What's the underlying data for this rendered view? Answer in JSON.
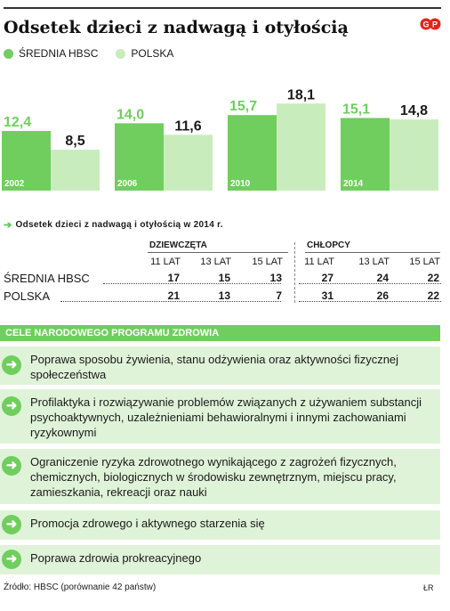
{
  "title": "Odsetek dzieci z nadwagą i otyłością",
  "legend": {
    "item1": "ŚREDNIA HBSC",
    "item2": "POLSKA"
  },
  "colors": {
    "hbsc": "#6fce5d",
    "polska": "#c9ecbc",
    "goal_bg": "#dff3d8",
    "banner": "#6fce5d"
  },
  "chart_data": {
    "type": "bar",
    "categories": [
      "2002",
      "2006",
      "2010",
      "2014"
    ],
    "series": [
      {
        "name": "ŚREDNIA HBSC",
        "values": [
          12.4,
          14.0,
          15.7,
          15.1
        ],
        "labels": [
          "12,4",
          "14,0",
          "15,7",
          "15,1"
        ]
      },
      {
        "name": "POLSKA",
        "values": [
          8.5,
          11.6,
          18.1,
          14.8
        ],
        "labels": [
          "8,5",
          "11,6",
          "18,1",
          "14,8"
        ]
      }
    ]
  },
  "table": {
    "title": "Odsetek dzieci z nadwagą i otyłością w 2014 r.",
    "group_girls": "DZIEWCZĘTA",
    "group_boys": "CHŁOPCY",
    "ages": [
      "11 LAT",
      "13 LAT",
      "15 LAT",
      "11 LAT",
      "13 LAT",
      "15 LAT"
    ],
    "rows": [
      {
        "label": "ŚREDNIA HBSC",
        "values": [
          "17",
          "15",
          "13",
          "27",
          "24",
          "22"
        ]
      },
      {
        "label": "POLSKA",
        "values": [
          "21",
          "13",
          "7",
          "31",
          "26",
          "22"
        ]
      }
    ]
  },
  "goals": {
    "title": "CELE NARODOWEGO PROGRAMU ZDROWIA",
    "items": [
      "Poprawa sposobu żywienia, stanu odżywienia oraz aktywności fizycznej społeczeństwa",
      "Profilaktyka i rozwiązywanie problemów związanych z używaniem substancji psychoaktywnych, uzależnieniami behawioralnymi i innymi zachowaniami ryzykownymi",
      "Ograniczenie ryzyka zdrowotnego wynikającego z zagrożeń fizycznych, chemicznych, biologicznych w środowisku zewnętrznym, miejscu pracy, zamieszkania, rekreacji oraz nauki",
      "Promocja zdrowego i aktywnego starzenia się",
      "Poprawa zdrowia prokreacyjnego"
    ]
  },
  "source": "Źródło: HBSC (porównanie 42 państw)",
  "author": "ŁR"
}
